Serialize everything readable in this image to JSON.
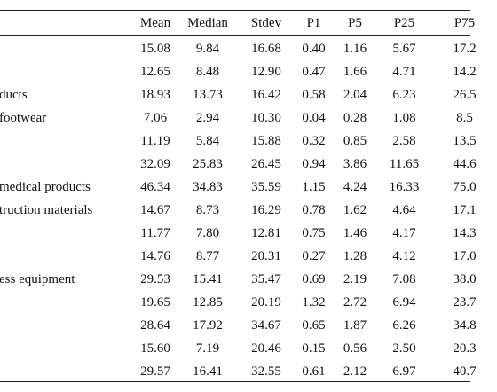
{
  "table": {
    "columns": [
      "",
      "Mean",
      "Median",
      "Stdev",
      "P1",
      "P5",
      "P25",
      "P75"
    ],
    "rows": [
      {
        "label": "",
        "values": [
          "15.08",
          "9.84",
          "16.68",
          "0.40",
          "1.16",
          "5.67",
          "17.2"
        ]
      },
      {
        "label": "",
        "values": [
          "12.65",
          "8.48",
          "12.90",
          "0.47",
          "1.66",
          "4.71",
          "14.2"
        ]
      },
      {
        "label": "ducts",
        "values": [
          "18.93",
          "13.73",
          "16.42",
          "0.58",
          "2.04",
          "6.23",
          "26.5"
        ]
      },
      {
        "label": "footwear",
        "values": [
          "7.06",
          "2.94",
          "10.30",
          "0.04",
          "0.28",
          "1.08",
          "8.5"
        ]
      },
      {
        "label": "",
        "values": [
          "11.19",
          "5.84",
          "15.88",
          "0.32",
          "0.85",
          "2.58",
          "13.5"
        ]
      },
      {
        "label": "",
        "values": [
          "32.09",
          "25.83",
          "26.45",
          "0.94",
          "3.86",
          "11.65",
          "44.6"
        ]
      },
      {
        "label": "medical products",
        "values": [
          "46.34",
          "34.83",
          "35.59",
          "1.15",
          "4.24",
          "16.33",
          "75.0"
        ]
      },
      {
        "label": "truction materials",
        "values": [
          "14.67",
          "8.73",
          "16.29",
          "0.78",
          "1.62",
          "4.64",
          "17.1"
        ]
      },
      {
        "label": "",
        "values": [
          "11.77",
          "7.80",
          "12.81",
          "0.75",
          "1.46",
          "4.17",
          "14.3"
        ]
      },
      {
        "label": "",
        "values": [
          "14.76",
          "8.77",
          "20.31",
          "0.27",
          "1.28",
          "4.12",
          "17.0"
        ]
      },
      {
        "label": "ess equipment",
        "values": [
          "29.53",
          "15.41",
          "35.47",
          "0.69",
          "2.19",
          "7.08",
          "38.0"
        ]
      },
      {
        "label": "",
        "values": [
          "19.65",
          "12.85",
          "20.19",
          "1.32",
          "2.72",
          "6.94",
          "23.7"
        ]
      },
      {
        "label": "",
        "values": [
          "28.64",
          "17.92",
          "34.67",
          "0.65",
          "1.87",
          "6.26",
          "34.8"
        ]
      },
      {
        "label": "",
        "values": [
          "15.60",
          "7.19",
          "20.46",
          "0.15",
          "0.56",
          "2.50",
          "20.3"
        ]
      },
      {
        "label": "",
        "values": [
          "29.57",
          "16.41",
          "32.55",
          "0.61",
          "2.12",
          "6.97",
          "40.7"
        ]
      }
    ]
  }
}
